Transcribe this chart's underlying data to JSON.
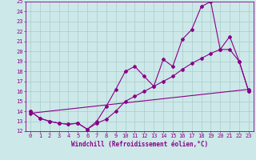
{
  "xlabel": "Windchill (Refroidissement éolien,°C)",
  "background_color": "#cce8e8",
  "line_color": "#880088",
  "xlim": [
    -0.5,
    23.5
  ],
  "ylim": [
    12,
    25
  ],
  "yticks": [
    12,
    13,
    14,
    15,
    16,
    17,
    18,
    19,
    20,
    21,
    22,
    23,
    24,
    25
  ],
  "xticks": [
    0,
    1,
    2,
    3,
    4,
    5,
    6,
    7,
    8,
    9,
    10,
    11,
    12,
    13,
    14,
    15,
    16,
    17,
    18,
    19,
    20,
    21,
    22,
    23
  ],
  "grid_color": "#aacccc",
  "series1_x": [
    0,
    1,
    2,
    3,
    4,
    5,
    6,
    7,
    8,
    9,
    10,
    11,
    12,
    13,
    14,
    15,
    16,
    17,
    18,
    19,
    20,
    21,
    22,
    23
  ],
  "series1_y": [
    14.0,
    13.3,
    13.0,
    12.8,
    12.7,
    12.8,
    12.2,
    13.0,
    14.5,
    16.2,
    18.0,
    18.5,
    17.5,
    16.5,
    19.2,
    18.5,
    21.2,
    22.2,
    24.5,
    25.0,
    20.2,
    21.5,
    19.0,
    16.0
  ],
  "series2_x": [
    0,
    1,
    2,
    3,
    4,
    5,
    6,
    7,
    8,
    9,
    10,
    11,
    12,
    13,
    14,
    15,
    16,
    17,
    18,
    19,
    20,
    21,
    22,
    23
  ],
  "series2_y": [
    14.0,
    13.3,
    13.0,
    12.8,
    12.7,
    12.8,
    12.2,
    12.8,
    13.2,
    14.0,
    15.0,
    15.5,
    16.0,
    16.5,
    17.0,
    17.5,
    18.2,
    18.8,
    19.3,
    19.8,
    20.2,
    20.2,
    19.0,
    16.0
  ],
  "series3_x": [
    0,
    23
  ],
  "series3_y": [
    13.8,
    16.2
  ],
  "marker": "D",
  "marker_size": 2,
  "linewidth": 0.8,
  "font_color": "#880088",
  "xlabel_fontsize": 5.5,
  "tick_fontsize": 5.0
}
